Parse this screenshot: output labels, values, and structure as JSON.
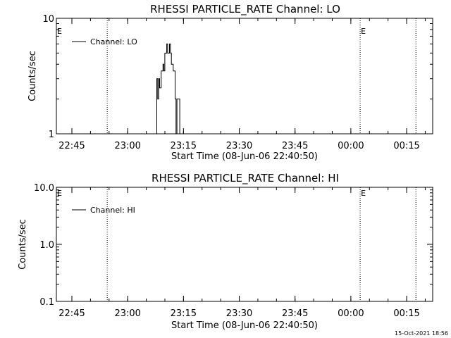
{
  "footer": {
    "timestamp": "15-Oct-2021 18:56"
  },
  "chart_data": [
    {
      "type": "line",
      "title": "RHESSI PARTICLE_RATE Channel: LO",
      "xlabel": "Start Time (08-Jun-06 22:40:50)",
      "ylabel": "Counts/sec",
      "y_scale": "log",
      "ylim": [
        1,
        10
      ],
      "y_ticks": [
        {
          "value": 1,
          "label": "1"
        },
        {
          "value": 10,
          "label": "10"
        }
      ],
      "xlim": [
        "22:40:50",
        "00:22:00"
      ],
      "x_ticks": [
        "22:45",
        "23:00",
        "23:15",
        "23:30",
        "23:45",
        "00:00",
        "00:15"
      ],
      "x_tick_minutes": [
        4.17,
        19.17,
        34.17,
        49.17,
        64.17,
        79.17,
        94.17
      ],
      "x_span_minutes": 101.17,
      "event_lines": [
        {
          "time": "22:54:30",
          "minutes": 13.67,
          "label": ""
        },
        {
          "time": "00:02:30",
          "minutes": 81.67,
          "label": "E"
        },
        {
          "time": "00:17:30",
          "minutes": 96.67,
          "label": ""
        }
      ],
      "left_marker": "E",
      "legend": {
        "position": "top-left",
        "entries": [
          "Channel: LO"
        ]
      },
      "series": [
        {
          "name": "Channel: LO",
          "points": [
            [
              "23:07:40",
              1
            ],
            [
              "23:07:50",
              3
            ],
            [
              "23:08:05",
              2
            ],
            [
              "23:08:20",
              3
            ],
            [
              "23:08:35",
              2.5
            ],
            [
              "23:09:00",
              3.5
            ],
            [
              "23:09:30",
              4
            ],
            [
              "23:09:45",
              3.5
            ],
            [
              "23:10:00",
              5
            ],
            [
              "23:10:30",
              6
            ],
            [
              "23:10:45",
              5
            ],
            [
              "23:11:15",
              6
            ],
            [
              "23:11:30",
              5
            ],
            [
              "23:11:45",
              4
            ],
            [
              "23:12:15",
              3.5
            ],
            [
              "23:12:45",
              2
            ],
            [
              "23:13:00",
              1
            ],
            [
              "23:13:15",
              2
            ],
            [
              "23:13:45",
              2
            ],
            [
              "23:14:00",
              1
            ]
          ]
        }
      ]
    },
    {
      "type": "line",
      "title": "RHESSI PARTICLE_RATE Channel: HI",
      "xlabel": "Start Time (08-Jun-06 22:40:50)",
      "ylabel": "Counts/sec",
      "y_scale": "log",
      "ylim": [
        0.1,
        10
      ],
      "y_ticks": [
        {
          "value": 0.1,
          "label": "0.1"
        },
        {
          "value": 1,
          "label": "1.0"
        },
        {
          "value": 10,
          "label": "10.0"
        }
      ],
      "xlim": [
        "22:40:50",
        "00:22:00"
      ],
      "x_ticks": [
        "22:45",
        "23:00",
        "23:15",
        "23:30",
        "23:45",
        "00:00",
        "00:15"
      ],
      "x_tick_minutes": [
        4.17,
        19.17,
        34.17,
        49.17,
        64.17,
        79.17,
        94.17
      ],
      "x_span_minutes": 101.17,
      "event_lines": [
        {
          "time": "22:54:30",
          "minutes": 13.67,
          "label": ""
        },
        {
          "time": "00:02:30",
          "minutes": 81.67,
          "label": "E"
        },
        {
          "time": "00:17:30",
          "minutes": 96.67,
          "label": ""
        }
      ],
      "left_marker": "E",
      "legend": {
        "position": "top-left",
        "entries": [
          "Channel: HI"
        ]
      },
      "series": [
        {
          "name": "Channel: HI",
          "points": []
        }
      ]
    }
  ]
}
